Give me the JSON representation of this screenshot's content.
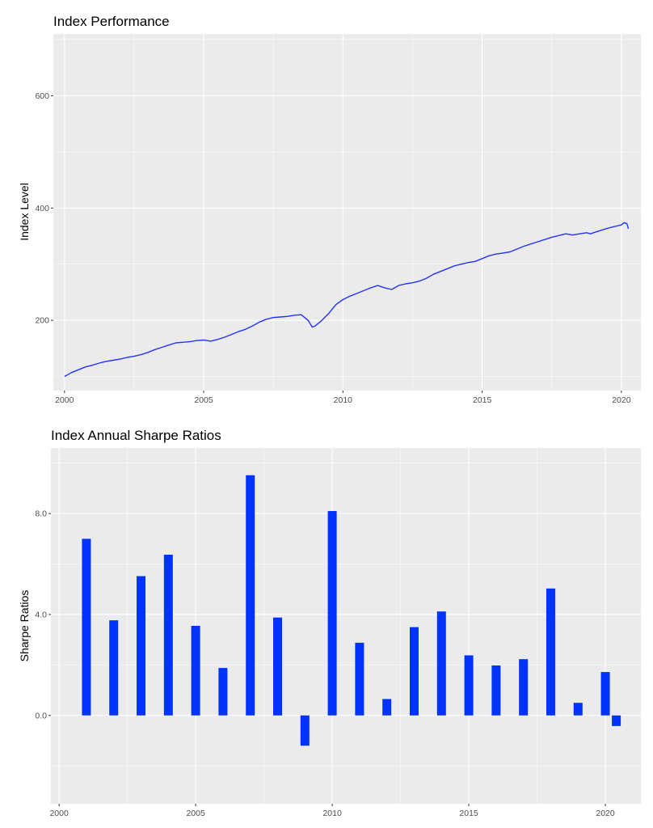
{
  "chart_data": [
    {
      "type": "line",
      "title": "Index Performance",
      "xlabel": "",
      "ylabel": "Index Level",
      "xlim": [
        1999.6,
        2020.7
      ],
      "ylim": [
        75,
        710
      ],
      "x_ticks": [
        2000,
        2005,
        2010,
        2015,
        2020
      ],
      "y_ticks": [
        200,
        400,
        600
      ],
      "grid": true,
      "colors": {
        "line": "#2233ff"
      },
      "series": [
        {
          "x": [
            2000.0,
            2000.25,
            2000.5,
            2000.75,
            2001.0,
            2001.25,
            2001.5,
            2001.75,
            2002.0,
            2002.25,
            2002.5,
            2002.75,
            2003.0,
            2003.25,
            2003.5,
            2003.75,
            2004.0,
            2004.25,
            2004.5,
            2004.75,
            2005.0,
            2005.25,
            2005.5,
            2005.75,
            2006.0,
            2006.25,
            2006.5,
            2006.75,
            2007.0,
            2007.25,
            2007.5,
            2007.75,
            2008.0,
            2008.25,
            2008.5,
            2008.75,
            2008.9,
            2009.0,
            2009.2,
            2009.5,
            2009.75,
            2010.0,
            2010.25,
            2010.5,
            2010.75,
            2011.0,
            2011.25,
            2011.5,
            2011.75,
            2012.0,
            2012.25,
            2012.5,
            2012.75,
            2013.0,
            2013.25,
            2013.5,
            2013.75,
            2014.0,
            2014.25,
            2014.5,
            2014.75,
            2015.0,
            2015.25,
            2015.5,
            2015.75,
            2016.0,
            2016.25,
            2016.5,
            2016.75,
            2017.0,
            2017.25,
            2017.5,
            2017.75,
            2018.0,
            2018.25,
            2018.5,
            2018.75,
            2018.9,
            2019.0,
            2019.25,
            2019.5,
            2019.75,
            2020.0,
            2020.1,
            2020.2,
            2020.25
          ],
          "y": [
            100,
            107,
            112,
            117,
            120,
            124,
            127,
            129,
            131,
            134,
            136,
            139,
            143,
            148,
            152,
            156,
            160,
            161,
            162,
            164,
            165,
            163,
            166,
            170,
            175,
            180,
            184,
            190,
            197,
            202,
            205,
            206,
            207,
            209,
            210,
            200,
            188,
            190,
            198,
            213,
            228,
            237,
            243,
            248,
            253,
            258,
            262,
            258,
            255,
            262,
            265,
            267,
            270,
            275,
            282,
            287,
            292,
            297,
            300,
            303,
            305,
            310,
            315,
            318,
            320,
            322,
            327,
            332,
            336,
            340,
            344,
            348,
            351,
            354,
            352,
            354,
            356,
            354,
            356,
            360,
            364,
            367,
            370,
            374,
            372,
            363
          ]
        }
      ]
    },
    {
      "type": "bar",
      "title": "Index Annual Sharpe Ratios",
      "xlabel": "",
      "ylabel": "Sharpe Ratios",
      "xlim": [
        1999.7,
        2021.3
      ],
      "ylim": [
        -3.5,
        10.6
      ],
      "x_ticks": [
        2000,
        2005,
        2010,
        2015,
        2020
      ],
      "y_ticks": [
        0.0,
        4.0,
        8.0
      ],
      "y_tick_labels": [
        "0.0",
        "4.0",
        "8.0"
      ],
      "grid": true,
      "colors": {
        "bar": "#0033ff"
      },
      "x": [
        2001,
        2002,
        2003,
        2004,
        2005,
        2006,
        2007,
        2008,
        2009,
        2010,
        2011,
        2012,
        2013,
        2014,
        2015,
        2016,
        2017,
        2018,
        2019,
        2020,
        2020.4
      ],
      "values": [
        7.0,
        3.77,
        5.52,
        6.37,
        3.55,
        1.88,
        9.52,
        3.88,
        -1.2,
        8.1,
        2.88,
        0.65,
        3.5,
        4.12,
        2.38,
        1.98,
        2.23,
        5.03,
        0.5,
        1.72,
        -0.42
      ]
    }
  ]
}
